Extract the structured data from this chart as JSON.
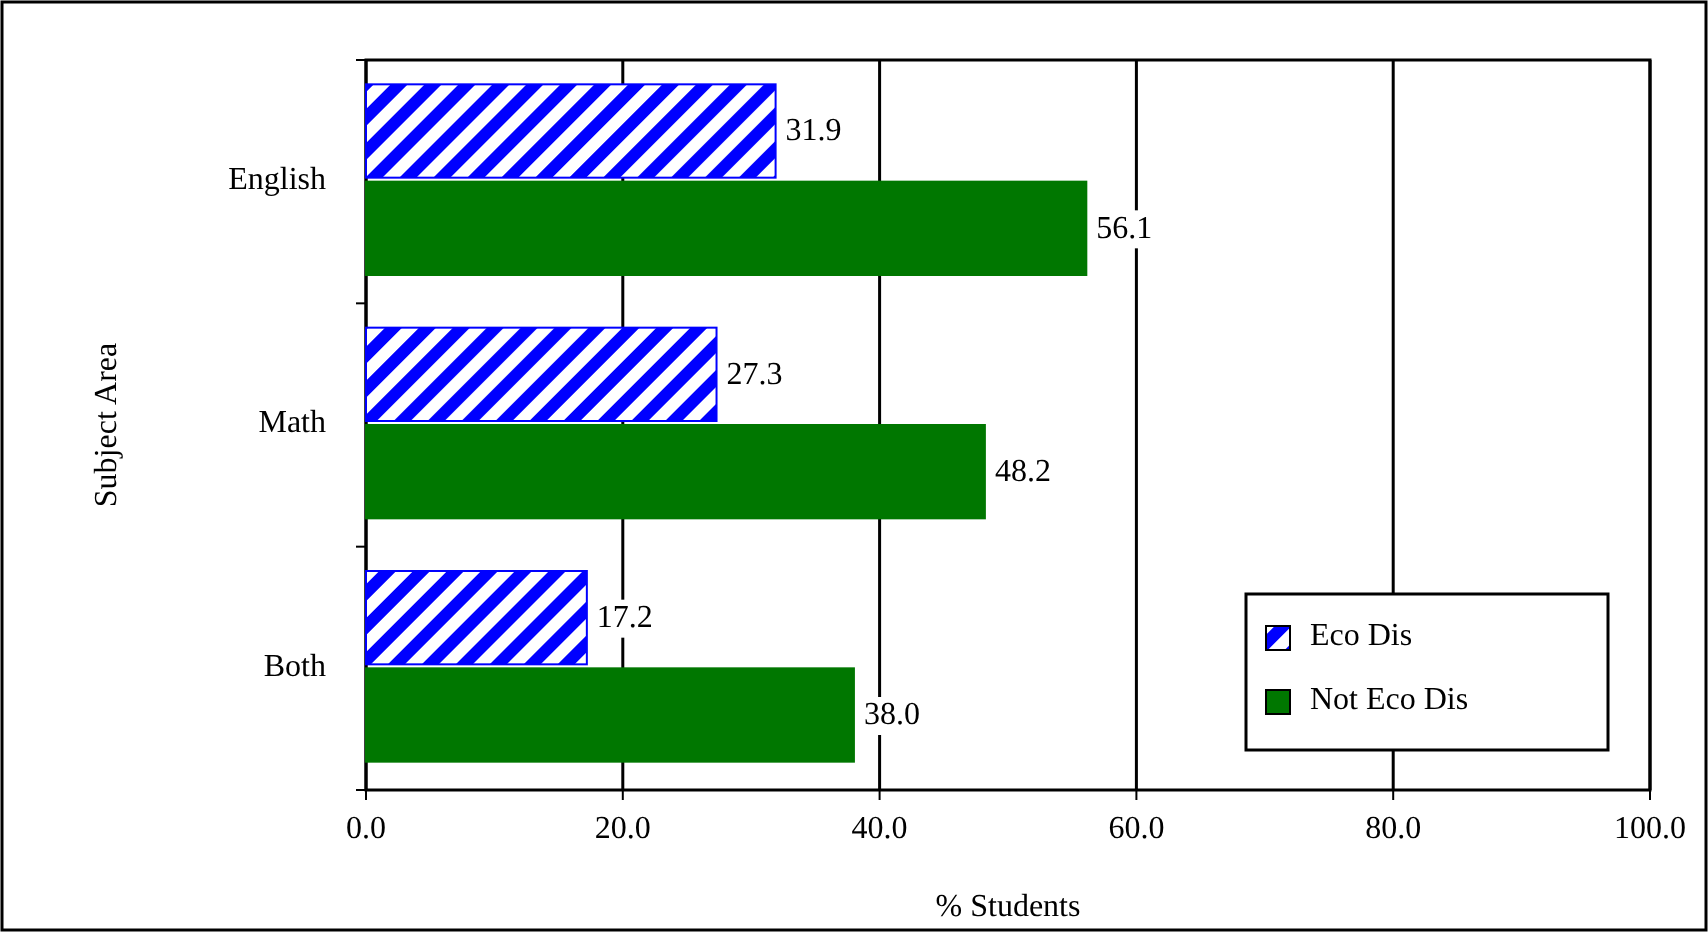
{
  "chart_data": {
    "type": "bar",
    "orientation": "horizontal",
    "xlabel": "% Students",
    "ylabel": "Subject Area",
    "categories": [
      "English",
      "Math",
      "Both"
    ],
    "series": [
      {
        "name": "Eco Dis",
        "color": "#0000ff",
        "values": [
          31.9,
          27.3,
          17.2
        ],
        "value_labels": [
          "31.9",
          "27.3",
          "17.2"
        ]
      },
      {
        "name": "Not Eco Dis",
        "color": "#007700",
        "values": [
          56.1,
          48.2,
          38.0
        ],
        "value_labels": [
          "56.1",
          "48.2",
          "38.0"
        ]
      }
    ],
    "xlim": [
      0,
      100
    ],
    "xticks": [
      {
        "value": 0,
        "label": "0.0"
      },
      {
        "value": 20,
        "label": "20.0"
      },
      {
        "value": 40,
        "label": "40.0"
      },
      {
        "value": 60,
        "label": "60.0"
      },
      {
        "value": 80,
        "label": "80.0"
      },
      {
        "value": 100,
        "label": "100.0"
      }
    ],
    "grid": "x",
    "legend": "bottom right"
  }
}
